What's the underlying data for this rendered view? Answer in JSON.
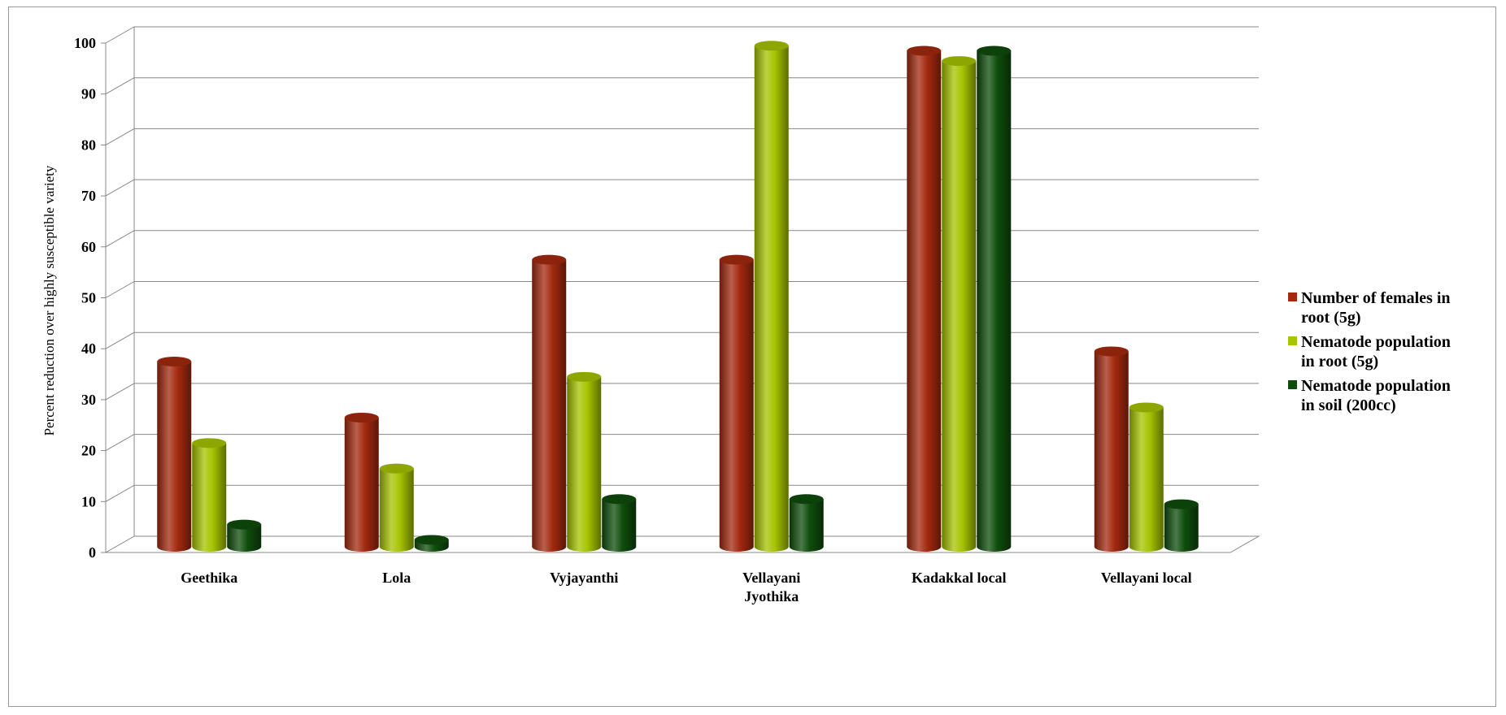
{
  "chart_data": {
    "type": "bar",
    "style": "3d-cylinder",
    "title": "",
    "xlabel": "",
    "ylabel": "Percent reduction over highly susceptible variety",
    "ylim": [
      0,
      100
    ],
    "yticks": [
      0,
      10,
      20,
      30,
      40,
      50,
      60,
      70,
      80,
      90,
      100
    ],
    "grid": true,
    "legend_position": "right",
    "categories": [
      [
        "Geethika"
      ],
      [
        "Lola"
      ],
      [
        "Vyjayanthi"
      ],
      [
        "Vellayani",
        "Jyothika"
      ],
      [
        "Kadakkal local"
      ],
      [
        "Vellayani local"
      ]
    ],
    "series": [
      {
        "name": [
          "Number of females in",
          "root (5g)"
        ],
        "color": "#a3290f",
        "values": [
          37,
          26,
          57,
          57,
          98,
          39
        ]
      },
      {
        "name": [
          "Nematode population",
          "in root (5g)"
        ],
        "color": "#a6c400",
        "values": [
          21,
          16,
          34,
          99,
          96,
          28
        ]
      },
      {
        "name": [
          "Nematode population",
          "in soil (200cc)"
        ],
        "color": "#0f4d0c",
        "values": [
          5,
          2,
          10,
          10,
          98,
          9
        ]
      }
    ]
  }
}
